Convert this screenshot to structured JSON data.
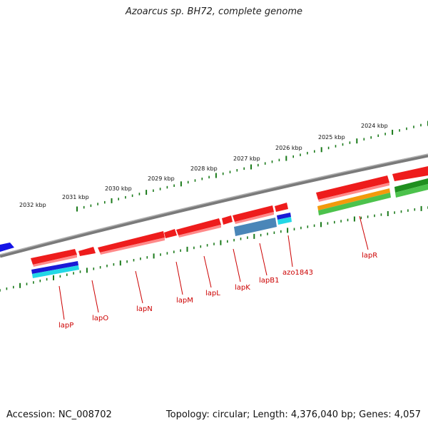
{
  "title": "Azoarcus sp. BH72, complete genome",
  "footer": {
    "accession": "Accession: NC_008702",
    "stats": "Topology: circular; Length: 4,376,040 bp; Genes: 4,057"
  },
  "colors": {
    "backbone": "#8a8a8a",
    "ticks": "#1a7a1a",
    "gene_red": "#ee1c1c",
    "label": "#cc0000"
  },
  "scale_labels": [
    "2032 kbp",
    "2031 kbp",
    "2030 kbp",
    "2029 kbp",
    "2028 kbp",
    "2027 kbp",
    "2026 kbp",
    "2025 kbp",
    "2024 kbp"
  ],
  "gene_labels": [
    "lapP",
    "lapO",
    "lapN",
    "lapM",
    "lapL",
    "lapK",
    "lapB1",
    "azo1843",
    "lapR"
  ]
}
